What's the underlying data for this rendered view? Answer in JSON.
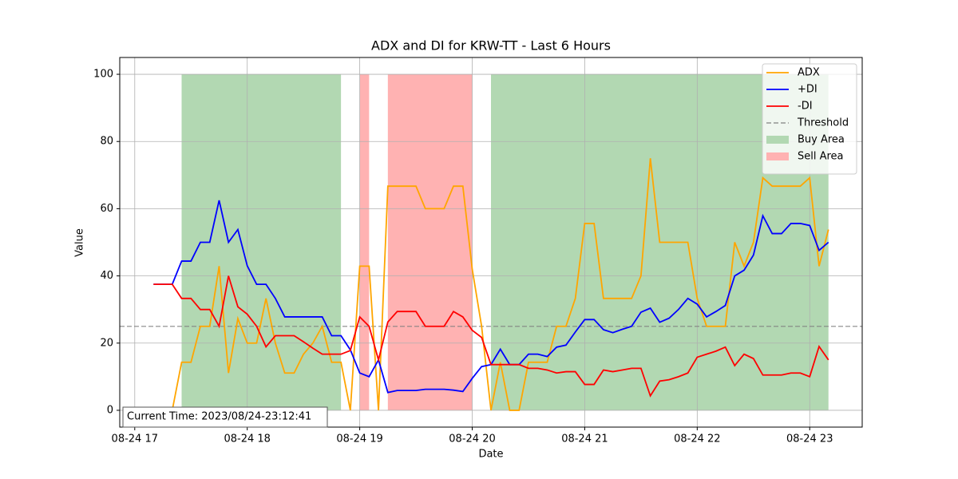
{
  "chart_data": {
    "type": "line",
    "title": "ADX and DI for KRW-TT - Last 6 Hours",
    "xlabel": "Date",
    "ylabel": "Value",
    "x": [
      "08-24 17:10",
      "08-24 17:15",
      "08-24 17:20",
      "08-24 17:25",
      "08-24 17:30",
      "08-24 17:35",
      "08-24 17:40",
      "08-24 17:45",
      "08-24 17:50",
      "08-24 17:55",
      "08-24 18:00",
      "08-24 18:05",
      "08-24 18:10",
      "08-24 18:15",
      "08-24 18:20",
      "08-24 18:25",
      "08-24 18:30",
      "08-24 18:35",
      "08-24 18:40",
      "08-24 18:45",
      "08-24 18:50",
      "08-24 18:55",
      "08-24 19:00",
      "08-24 19:05",
      "08-24 19:10",
      "08-24 19:15",
      "08-24 19:20",
      "08-24 19:25",
      "08-24 19:30",
      "08-24 19:35",
      "08-24 19:40",
      "08-24 19:45",
      "08-24 19:50",
      "08-24 19:55",
      "08-24 20:00",
      "08-24 20:05",
      "08-24 20:10",
      "08-24 20:15",
      "08-24 20:20",
      "08-24 20:25",
      "08-24 20:30",
      "08-24 20:35",
      "08-24 20:40",
      "08-24 20:45",
      "08-24 20:50",
      "08-24 20:55",
      "08-24 21:00",
      "08-24 21:05",
      "08-24 21:10",
      "08-24 21:15",
      "08-24 21:20",
      "08-24 21:25",
      "08-24 21:30",
      "08-24 21:35",
      "08-24 21:40",
      "08-24 21:45",
      "08-24 21:50",
      "08-24 21:55",
      "08-24 22:00",
      "08-24 22:05",
      "08-24 22:10",
      "08-24 22:15",
      "08-24 22:20",
      "08-24 22:25",
      "08-24 22:30",
      "08-24 22:35",
      "08-24 22:40",
      "08-24 22:45",
      "08-24 22:50",
      "08-24 22:55",
      "08-24 23:00",
      "08-24 23:05",
      "08-24 23:10"
    ],
    "series": [
      {
        "name": "ADX",
        "color": "orange",
        "values": [
          0,
          0,
          0,
          14.3,
          14.3,
          25,
          25,
          42.9,
          11.1,
          27.3,
          20,
          20,
          33.3,
          20,
          11.1,
          11.1,
          16.7,
          20,
          25,
          14.3,
          14.3,
          0,
          42.9,
          42.9,
          0,
          66.7,
          66.7,
          66.7,
          66.7,
          60,
          60,
          60,
          66.7,
          66.7,
          42,
          25,
          0,
          14.3,
          0,
          0,
          14.3,
          14.3,
          14.3,
          25,
          25,
          33.3,
          55.6,
          55.6,
          33.3,
          33.3,
          33.3,
          33.3,
          40,
          75,
          50,
          50,
          50,
          50,
          33.3,
          25,
          25,
          25,
          50,
          42.9,
          50,
          69.2,
          66.7,
          66.7,
          66.7,
          66.7,
          69.2,
          42.9,
          53.8
        ]
      },
      {
        "name": "+DI",
        "color": "blue",
        "values": [
          37.5,
          37.5,
          37.5,
          44.4,
          44.4,
          50,
          50,
          62.5,
          50,
          53.8,
          43,
          37.5,
          37.5,
          33.3,
          27.8,
          27.8,
          27.8,
          27.8,
          27.8,
          22.2,
          22.2,
          18,
          11.1,
          10,
          15,
          5.3,
          5.9,
          5.9,
          5.9,
          6.25,
          6.25,
          6.25,
          6,
          5.6,
          9.5,
          13,
          13.6,
          18.2,
          13.6,
          13.6,
          16.7,
          16.7,
          16,
          18.8,
          19.4,
          23.3,
          27,
          27,
          24,
          23.1,
          24.1,
          25,
          29.2,
          30.4,
          26.2,
          27.4,
          30,
          33.3,
          31.6,
          27.8,
          29.4,
          31.2,
          40,
          41.7,
          46.2,
          57.9,
          52.6,
          52.6,
          55.6,
          55.6,
          55,
          47.6,
          50
        ]
      },
      {
        "name": "-DI",
        "color": "red",
        "values": [
          37.5,
          37.5,
          37.5,
          33.3,
          33.3,
          30,
          30,
          25,
          40,
          30.8,
          28.6,
          25,
          18.9,
          22.2,
          22.2,
          22.2,
          20.4,
          18.5,
          16.7,
          16.7,
          16.7,
          17.8,
          27.8,
          25,
          15,
          26.3,
          29.4,
          29.4,
          29.4,
          25,
          25,
          25,
          29.4,
          27.8,
          23.8,
          21.7,
          13.6,
          13.6,
          13.6,
          13.6,
          12.5,
          12.5,
          12,
          11.1,
          11.5,
          11.5,
          7.7,
          7.7,
          12,
          11.5,
          12,
          12.5,
          12.5,
          4.3,
          8.7,
          9.1,
          10,
          11.1,
          15.8,
          16.7,
          17.6,
          18.8,
          13.3,
          16.7,
          15.4,
          10.5,
          10.5,
          10.5,
          11.1,
          11.1,
          10,
          19,
          15
        ]
      }
    ],
    "threshold": {
      "name": "Threshold",
      "value": 25,
      "color": "gray"
    },
    "areas": [
      {
        "name": "Buy Area",
        "color": "#b2d8b2",
        "ymin": 0,
        "ymax": 100,
        "spans": [
          [
            "08-24 17:25",
            "08-24 18:50"
          ],
          [
            "08-24 20:10",
            "08-24 23:10"
          ]
        ]
      },
      {
        "name": "Sell Area",
        "color": "#ffb2b2",
        "ymin": 0,
        "ymax": 100,
        "spans": [
          [
            "08-24 19:00",
            "08-24 19:05"
          ],
          [
            "08-24 19:15",
            "08-24 20:00"
          ]
        ]
      }
    ],
    "annotation": "Current Time: 2023/08/24-23:12:41",
    "xlim": [
      "08-24 16:52",
      "08-24 23:28"
    ],
    "xticks": [
      {
        "value": "08-24 17:00",
        "label": "08-24 17"
      },
      {
        "value": "08-24 18:00",
        "label": "08-24 18"
      },
      {
        "value": "08-24 19:00",
        "label": "08-24 19"
      },
      {
        "value": "08-24 20:00",
        "label": "08-24 20"
      },
      {
        "value": "08-24 21:00",
        "label": "08-24 21"
      },
      {
        "value": "08-24 22:00",
        "label": "08-24 22"
      },
      {
        "value": "08-24 23:00",
        "label": "08-24 23"
      }
    ],
    "ylim": [
      -5,
      105
    ],
    "yticks": [
      0,
      20,
      40,
      60,
      80,
      100
    ],
    "grid": true,
    "legend": "upper right"
  }
}
